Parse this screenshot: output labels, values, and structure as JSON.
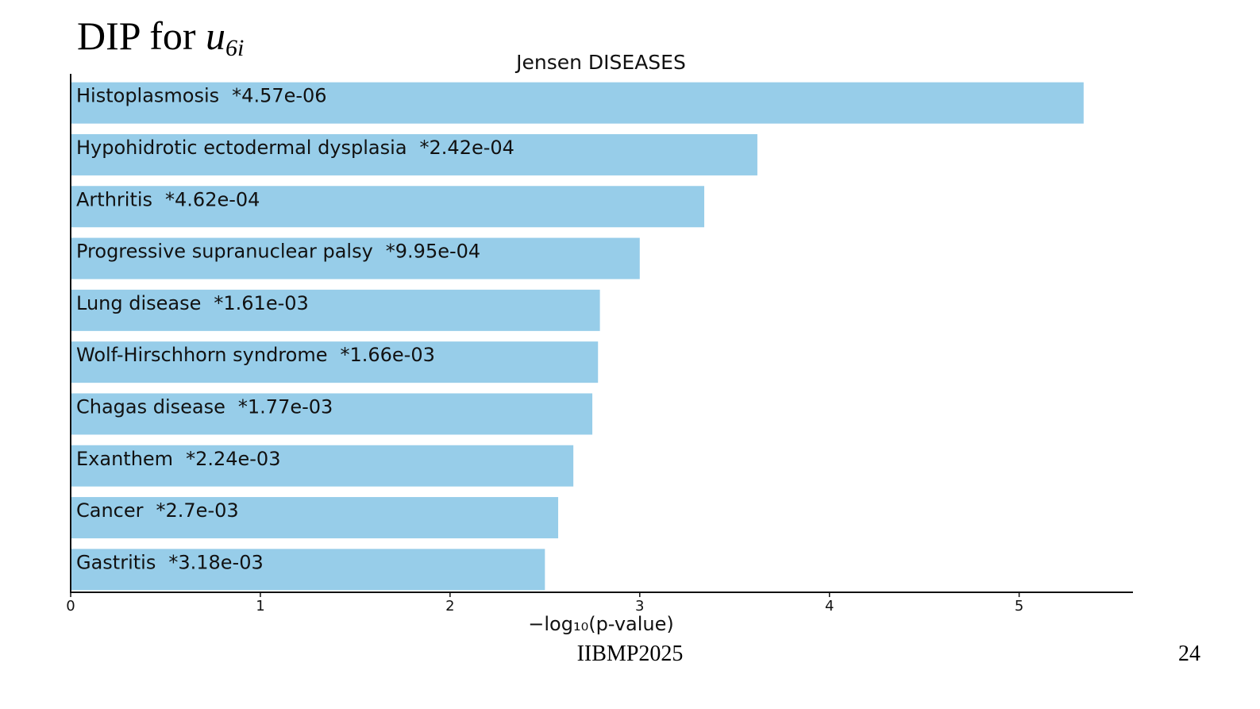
{
  "slide": {
    "title_text": "DIP for ",
    "title_var": "u",
    "title_sub": "6i",
    "footer": "IIBMP2025",
    "page_number": "24"
  },
  "colors": {
    "bar": "#97cde9",
    "axis": "#111111"
  },
  "chart_data": {
    "type": "bar",
    "orientation": "horizontal",
    "title": "Jensen DISEASES",
    "xlabel": "−log₁₀(p-value)",
    "ylabel": "",
    "xlim": [
      0,
      5.6
    ],
    "xticks": [
      0,
      1,
      2,
      3,
      4,
      5
    ],
    "categories": [
      "Histoplasmosis",
      "Hypohidrotic ectodermal dysplasia",
      "Arthritis",
      "Progressive supranuclear palsy",
      "Lung disease",
      "Wolf-Hirschhorn syndrome",
      "Chagas disease",
      "Exanthem",
      "Cancer",
      "Gastritis"
    ],
    "p_values": [
      "*4.57e-06",
      "*2.42e-04",
      "*4.62e-04",
      "*9.95e-04",
      "*1.61e-03",
      "*1.66e-03",
      "*1.77e-03",
      "*2.24e-03",
      "*2.7e-03",
      "*3.18e-03"
    ],
    "values": [
      5.34,
      3.62,
      3.34,
      3.0,
      2.79,
      2.78,
      2.75,
      2.65,
      2.57,
      2.5
    ],
    "grid": false,
    "legend": "none"
  }
}
